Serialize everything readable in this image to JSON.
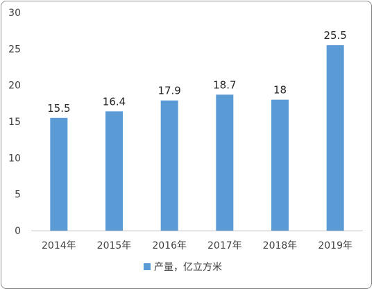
{
  "chart_data": {
    "type": "bar",
    "categories": [
      "2014年",
      "2015年",
      "2016年",
      "2017年",
      "2018年",
      "2019年"
    ],
    "series": [
      {
        "name": "产量，亿立方米",
        "values": [
          15.5,
          16.4,
          17.9,
          18.7,
          18,
          25.5
        ],
        "color": "#5b9bd5"
      }
    ],
    "data_labels": [
      "15.5",
      "16.4",
      "17.9",
      "18.7",
      "18",
      "25.5"
    ],
    "yticks": [
      "0",
      "5",
      "10",
      "15",
      "20",
      "25",
      "30"
    ],
    "ylim": [
      0,
      30
    ],
    "grid": false,
    "legend_position": "bottom",
    "title": "",
    "xlabel": "",
    "ylabel": ""
  }
}
